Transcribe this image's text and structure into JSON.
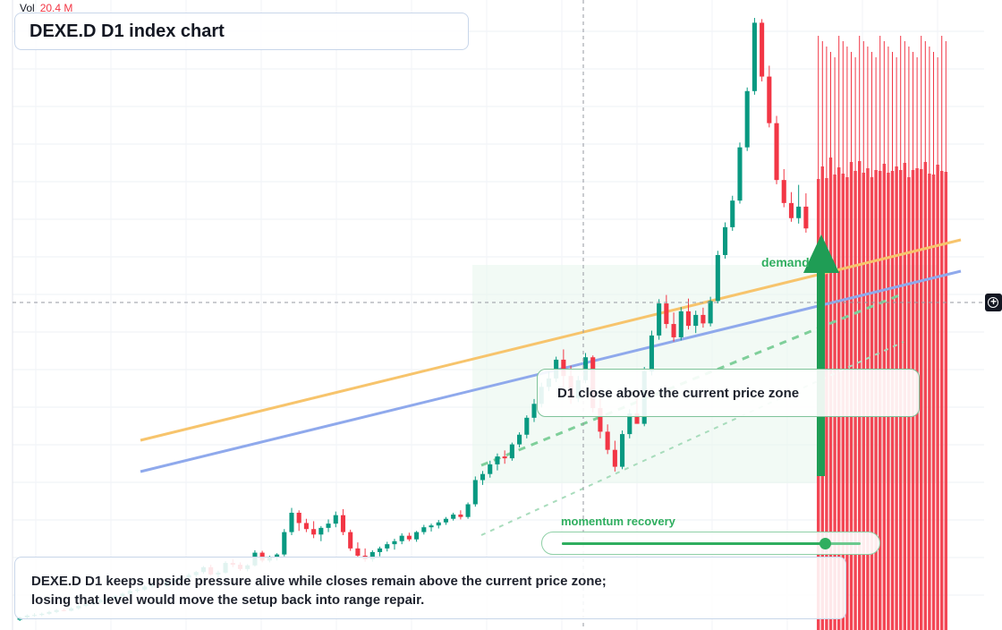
{
  "volume": {
    "label": "Vol",
    "value": "20.4 M",
    "value_color": "#f23645"
  },
  "title": "DEXE.D D1 index chart",
  "callout": "D1 close above the current price zone",
  "demand_label": "demand",
  "momentum": {
    "label": "momentum recovery",
    "level": 0.88
  },
  "summary": {
    "line1": "DEXE.D D1 keeps upside pressure alive while closes remain above the current price zone;",
    "line2": "losing that level would move the setup back into range repair."
  },
  "colors": {
    "up": "#089981",
    "down": "#f23645",
    "trend_orange": "#f7c46c",
    "trend_blue": "#8fa9ec",
    "accent_green": "#2fae5f"
  },
  "chart_data": {
    "type": "candlestick",
    "title": "DEXE.D D1 index chart",
    "timeframe": "D1",
    "grid": true,
    "price_range": [
      0,
      100
    ],
    "ohlc": [
      [
        0.5,
        1.0,
        0.3,
        0.9
      ],
      [
        0.9,
        1.4,
        0.7,
        1.2
      ],
      [
        1.2,
        1.6,
        1.0,
        1.3
      ],
      [
        1.3,
        1.7,
        1.1,
        1.5
      ],
      [
        1.5,
        2.0,
        1.3,
        1.8
      ],
      [
        1.8,
        2.3,
        1.6,
        2.1
      ],
      [
        2.1,
        2.4,
        1.9,
        2.0
      ],
      [
        2.0,
        2.6,
        1.9,
        2.4
      ],
      [
        2.4,
        3.0,
        2.2,
        2.8
      ],
      [
        2.8,
        3.3,
        2.6,
        3.1
      ],
      [
        3.1,
        3.6,
        2.9,
        3.4
      ],
      [
        3.4,
        4.0,
        3.2,
        3.8
      ],
      [
        3.8,
        4.3,
        3.5,
        4.0
      ],
      [
        4.0,
        4.6,
        3.8,
        4.4
      ],
      [
        4.4,
        5.0,
        4.2,
        4.8
      ],
      [
        4.8,
        5.6,
        4.6,
        5.3
      ],
      [
        5.3,
        5.8,
        5.0,
        5.5
      ],
      [
        5.5,
        6.2,
        5.3,
        6.0
      ],
      [
        6.0,
        6.6,
        5.7,
        6.3
      ],
      [
        6.3,
        6.8,
        5.9,
        6.1
      ],
      [
        6.1,
        7.0,
        5.9,
        6.8
      ],
      [
        6.8,
        7.4,
        6.5,
        7.1
      ],
      [
        7.1,
        7.8,
        6.9,
        7.5
      ],
      [
        7.5,
        8.2,
        7.2,
        7.9
      ],
      [
        7.9,
        8.6,
        7.6,
        8.4
      ],
      [
        8.4,
        9.4,
        8.1,
        9.2
      ],
      [
        9.2,
        9.6,
        7.8,
        8.0
      ],
      [
        8.0,
        8.6,
        7.5,
        8.3
      ],
      [
        8.3,
        10.2,
        8.1,
        9.9
      ],
      [
        9.9,
        10.5,
        9.2,
        9.6
      ],
      [
        9.6,
        10.0,
        8.6,
        8.9
      ],
      [
        8.9,
        9.7,
        8.5,
        9.5
      ],
      [
        9.5,
        12.0,
        9.3,
        11.6
      ],
      [
        11.6,
        11.9,
        10.0,
        10.3
      ],
      [
        10.3,
        11.1,
        10.0,
        10.9
      ],
      [
        10.9,
        11.5,
        10.3,
        11.3
      ],
      [
        11.3,
        15.5,
        11.0,
        15.0
      ],
      [
        15.0,
        19.0,
        14.5,
        18.2
      ],
      [
        18.2,
        18.6,
        15.2,
        16.5
      ],
      [
        16.5,
        17.2,
        15.0,
        15.5
      ],
      [
        15.5,
        16.8,
        14.0,
        14.6
      ],
      [
        14.6,
        16.0,
        13.5,
        15.7
      ],
      [
        15.7,
        17.1,
        15.0,
        16.4
      ],
      [
        16.4,
        18.4,
        15.8,
        17.8
      ],
      [
        17.8,
        18.8,
        14.5,
        15.0
      ],
      [
        15.0,
        15.4,
        11.9,
        12.3
      ],
      [
        12.3,
        13.3,
        10.8,
        11.1
      ],
      [
        11.1,
        12.3,
        10.1,
        10.5
      ],
      [
        10.5,
        12.0,
        10.1,
        11.7
      ],
      [
        11.7,
        12.6,
        11.0,
        12.3
      ],
      [
        12.3,
        13.4,
        11.8,
        13.0
      ],
      [
        13.0,
        13.9,
        12.1,
        13.5
      ],
      [
        13.5,
        14.8,
        13.0,
        14.4
      ],
      [
        14.4,
        14.9,
        13.5,
        13.8
      ],
      [
        13.8,
        15.2,
        13.4,
        15.0
      ],
      [
        15.0,
        16.2,
        14.6,
        15.8
      ],
      [
        15.8,
        16.4,
        15.1,
        16.1
      ],
      [
        16.1,
        17.0,
        15.6,
        16.6
      ],
      [
        16.6,
        17.5,
        16.2,
        17.2
      ],
      [
        17.2,
        18.2,
        16.9,
        17.9
      ],
      [
        17.9,
        18.6,
        17.1,
        17.5
      ],
      [
        17.5,
        19.9,
        17.2,
        19.6
      ],
      [
        19.6,
        24.2,
        19.2,
        23.6
      ],
      [
        23.6,
        25.1,
        22.8,
        24.6
      ],
      [
        24.6,
        26.8,
        24.0,
        26.2
      ],
      [
        26.2,
        28.0,
        25.2,
        27.5
      ],
      [
        27.5,
        28.5,
        26.3,
        27.2
      ],
      [
        27.2,
        29.8,
        26.8,
        29.5
      ],
      [
        29.5,
        31.5,
        29.0,
        31.1
      ],
      [
        31.1,
        34.3,
        30.5,
        33.9
      ],
      [
        33.9,
        37.0,
        33.2,
        36.2
      ],
      [
        36.2,
        39.7,
        35.6,
        39.0
      ],
      [
        39.0,
        41.5,
        38.3,
        40.4
      ],
      [
        40.4,
        44.0,
        39.8,
        43.5
      ],
      [
        43.5,
        45.2,
        39.0,
        40.8
      ],
      [
        40.8,
        42.5,
        36.2,
        37.1
      ],
      [
        37.1,
        40.8,
        36.5,
        40.1
      ],
      [
        40.1,
        44.6,
        39.6,
        43.9
      ],
      [
        43.9,
        44.2,
        34.8,
        35.5
      ],
      [
        35.5,
        37.6,
        30.5,
        31.6
      ],
      [
        31.6,
        32.8,
        27.9,
        28.6
      ],
      [
        28.6,
        30.1,
        25.0,
        25.8
      ],
      [
        25.8,
        31.8,
        25.4,
        31.2
      ],
      [
        31.2,
        35.3,
        30.5,
        34.6
      ],
      [
        34.6,
        37.5,
        33.2,
        32.9
      ],
      [
        32.9,
        42.3,
        32.5,
        41.6
      ],
      [
        41.6,
        48.3,
        40.9,
        47.5
      ],
      [
        47.5,
        53.5,
        46.8,
        52.8
      ],
      [
        52.8,
        54.2,
        48.7,
        49.4
      ],
      [
        49.4,
        51.3,
        46.5,
        47.2
      ],
      [
        47.2,
        52.2,
        46.7,
        51.5
      ],
      [
        51.5,
        53.6,
        48.5,
        49.1
      ],
      [
        49.1,
        51.6,
        47.9,
        50.9
      ],
      [
        50.9,
        52.1,
        48.8,
        49.5
      ],
      [
        49.5,
        53.9,
        49.0,
        53.2
      ],
      [
        53.2,
        61.5,
        52.8,
        60.8
      ],
      [
        60.8,
        66.2,
        60.2,
        65.4
      ],
      [
        65.4,
        70.6,
        64.8,
        69.8
      ],
      [
        69.8,
        79.4,
        69.3,
        78.6
      ],
      [
        78.6,
        88.5,
        78.0,
        87.9
      ],
      [
        87.9,
        100.0,
        87.3,
        99.2
      ],
      [
        99.2,
        99.8,
        89.5,
        90.3
      ],
      [
        90.3,
        92.1,
        81.9,
        82.6
      ],
      [
        82.6,
        83.8,
        72.5,
        73.2
      ],
      [
        73.2,
        75.0,
        68.7,
        69.4
      ],
      [
        69.4,
        71.2,
        66.3,
        66.9
      ],
      [
        66.9,
        72.4,
        66.0,
        68.8
      ],
      [
        68.8,
        71.0,
        64.5,
        65.2
      ]
    ],
    "volume_bars": [
      92,
      96,
      91,
      100,
      93,
      95,
      94,
      92,
      97,
      95,
      98,
      93,
      96,
      92,
      94,
      95,
      97,
      93,
      95,
      96,
      94,
      98,
      92,
      94,
      96,
      95,
      97,
      94,
      93,
      96,
      95,
      94
    ],
    "lines": [
      {
        "name": "",
        "color": "#f7c46c",
        "from": [
          0.1,
          0.3
        ],
        "to": [
          1.0,
          0.6
        ]
      },
      {
        "name": "",
        "color": "#8fa9ec",
        "from": [
          0.1,
          0.25
        ],
        "to": [
          1.0,
          0.55
        ]
      }
    ]
  }
}
